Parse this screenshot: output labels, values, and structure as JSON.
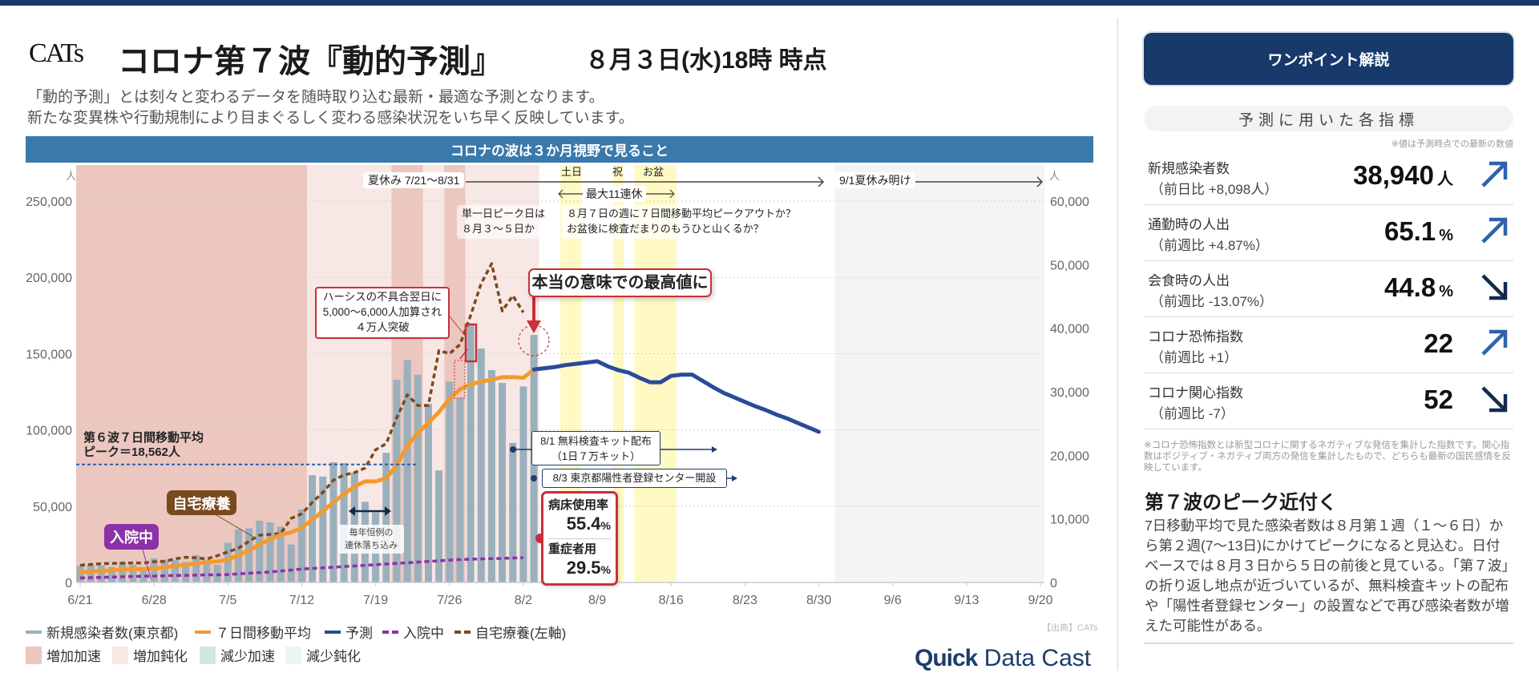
{
  "header": {
    "logo": "CATs",
    "title": "コロナ第７波『動的予測』",
    "date": "８月３日(水)18時 時点",
    "subtitle_1": "「動的予測」とは刻々と変わるデータを随時取り込む最新・最適な予測となります。",
    "subtitle_2": "新たな変異株や行動規制により目まぐるしく変わる感染状況をいち早く反映しています。"
  },
  "banner": "コロナの波は３か月視野で見ること",
  "chart_data": {
    "type": "bar+line",
    "title": "コロナの波は３か月視野で見ること",
    "x_unit": "days from 6/21",
    "x_range": [
      0,
      91
    ],
    "x_ticks": [
      {
        "day": 0,
        "label": "6/21"
      },
      {
        "day": 7,
        "label": "6/28"
      },
      {
        "day": 14,
        "label": "7/5"
      },
      {
        "day": 21,
        "label": "7/12"
      },
      {
        "day": 28,
        "label": "7/19"
      },
      {
        "day": 35,
        "label": "7/26"
      },
      {
        "day": 42,
        "label": "8/2"
      },
      {
        "day": 49,
        "label": "8/9"
      },
      {
        "day": 56,
        "label": "8/16"
      },
      {
        "day": 63,
        "label": "8/23"
      },
      {
        "day": 70,
        "label": "8/30"
      },
      {
        "day": 77,
        "label": "9/6"
      },
      {
        "day": 84,
        "label": "9/13"
      },
      {
        "day": 91,
        "label": "9/20"
      }
    ],
    "left_axis": {
      "unit": "人",
      "range": [
        0,
        250000
      ],
      "ticks": [
        "0",
        "50,000",
        "100,000",
        "150,000",
        "200,000",
        "250,000"
      ]
    },
    "right_axis": {
      "unit": "人",
      "range": [
        0,
        60000
      ],
      "ticks": [
        "0",
        "10,000",
        "20,000",
        "30,000",
        "40,000",
        "50,000",
        "60,000"
      ]
    },
    "series": [
      {
        "name": "新規感染者数(東京都)",
        "type": "bar",
        "axis": "right",
        "color": "#9ab0bd",
        "start_day": 0,
        "values": [
          2662,
          2796,
          2670,
          2449,
          3262,
          2770,
          1963,
          3803,
          3591,
          3511,
          3223,
          4288,
          3571,
          2772,
          6231,
          8341,
          8529,
          9716,
          9456,
          8777,
          5974,
          11511,
          16878,
          16662,
          18919,
          18771,
          17315,
          12685,
          11018,
          20401,
          31878,
          34995,
          32698,
          28112,
          17630,
          31593,
          29036,
          40406,
          36814,
          33400,
          31400,
          21958,
          30842,
          38940
        ]
      },
      {
        "name": "７日間移動平均",
        "type": "line",
        "axis": "right",
        "color": "#f39a2e",
        "start_day": 0,
        "values": [
          1600,
          1700,
          1800,
          1900,
          2000,
          2100,
          2100,
          2200,
          2400,
          2600,
          2800,
          3000,
          3200,
          3300,
          3600,
          4300,
          5000,
          6000,
          6800,
          7500,
          7900,
          8600,
          9900,
          11200,
          12600,
          13900,
          15100,
          15900,
          15900,
          16400,
          18400,
          21500,
          23500,
          25100,
          26800,
          28900,
          30400,
          31200,
          31600,
          31900,
          32300,
          32300,
          32200,
          33500
        ]
      },
      {
        "name": "予測",
        "type": "line",
        "axis": "right",
        "color": "#2a4a9a",
        "start_day": 43,
        "values": [
          33500,
          33700,
          33900,
          34200,
          34400,
          34600,
          34800,
          34000,
          33400,
          33000,
          32200,
          31500,
          31500,
          32500,
          32700,
          32700,
          31700,
          30700,
          29800,
          29100,
          28400,
          27700,
          27100,
          26400,
          25800,
          25100,
          24400,
          23700
        ]
      },
      {
        "name": "入院中",
        "type": "dotted-line",
        "axis": "right",
        "color": "#8b32a8",
        "start_day": 0,
        "values": [
          700,
          750,
          800,
          850,
          900,
          950,
          1000,
          1000,
          1050,
          1100,
          1100,
          1150,
          1200,
          1200,
          1250,
          1350,
          1450,
          1550,
          1650,
          1800,
          1950,
          2100,
          2200,
          2300,
          2400,
          2500,
          2600,
          2700,
          2800,
          2900,
          3000,
          3100,
          3200,
          3300,
          3400,
          3500,
          3600,
          3650,
          3700,
          3750,
          3800,
          3850,
          3900
        ]
      },
      {
        "name": "自宅療養(左軸)",
        "type": "dotted-line",
        "axis": "left",
        "color": "#7a4a1f",
        "start_day": 0,
        "values": [
          11300,
          11800,
          12300,
          12500,
          12600,
          12800,
          12700,
          13600,
          13800,
          15500,
          16500,
          16200,
          15400,
          17500,
          20000,
          22500,
          27000,
          31000,
          31500,
          32000,
          42000,
          45000,
          52500,
          59000,
          67000,
          70500,
          72000,
          75000,
          87000,
          91000,
          108000,
          123000,
          116000,
          116000,
          152000,
          150000,
          156000,
          175000,
          196000,
          209000,
          178000,
          188000,
          177000
        ]
      }
    ],
    "phases": [
      {
        "name": "増加加速",
        "from": -0.4,
        "to": 21.5
      },
      {
        "name": "増加鈍化",
        "from": 21.5,
        "to": 29.5
      },
      {
        "name": "増加加速",
        "from": 29.5,
        "to": 32.5
      },
      {
        "name": "増加鈍化",
        "from": 32.5,
        "to": 34.5
      },
      {
        "name": "増加加速",
        "from": 34.5,
        "to": 36.5
      },
      {
        "name": "増加鈍化",
        "from": 36.5,
        "to": 43.5
      }
    ],
    "holidays": [
      {
        "label": "土日",
        "from": 45.5,
        "to": 47.5
      },
      {
        "label": "祝",
        "from": 50.5,
        "to": 51.5
      },
      {
        "label": "お盆",
        "from": 52.5,
        "to": 56.5
      }
    ],
    "after_vacation_from": 71.5,
    "sixth_wave_peak": 18562,
    "phase_colors": {
      "増加加速": "#ebc7bf",
      "増加鈍化": "#f8e8e5",
      "減少加速": "#cfe7de",
      "減少鈍化": "#ebf5f1"
    },
    "legend": {
      "row1": [
        "新規感染者数(東京都)",
        "７日間移動平均",
        "予測",
        "入院中",
        "自宅療養(左軸)"
      ],
      "row2": [
        "増加加速",
        "増加鈍化",
        "減少加速",
        "減少鈍化"
      ]
    }
  },
  "annotations": {
    "summer_vacation": "夏休み 7/21〜8/31",
    "vacation_end": "9/1夏休み明け",
    "holiday_labels": [
      "土日",
      "祝",
      "お盆"
    ],
    "long_holiday": "最大11連休",
    "peak_question_1": "８月７日の週に７日間移動平均ピークアウトか？",
    "peak_question_2": "お盆後に検査だまりのもうひと山くるか？",
    "single_peak_1": "単一日ピーク日は",
    "single_peak_2": "８月３〜５日か",
    "hersys_1": "ハーシスの不具合翌日に",
    "hersys_2": "5,000〜6,000人加算され",
    "hersys_3": "４万人突破",
    "true_max": "本当の意味での最高値に",
    "kit_1": "8/1 無料検査キット配布",
    "kit_2": "（1日７万キット）",
    "center": "8/3 東京都陽性者登録センター開設",
    "bed_label": "病床使用率",
    "bed_value": "55.4",
    "severe_label": "重症者用",
    "severe_value": "29.5",
    "percent": "%",
    "sixth_1": "第６波７日間移動平均",
    "sixth_2": "ピーク＝18,562人",
    "home_tag": "自宅療養",
    "hosp_tag": "入院中",
    "dip_1": "毎年恒例の",
    "dip_2": "連休落ち込み",
    "unit": "人",
    "source": "【出典】CATs",
    "brand_1": "Quick",
    "brand_2": "Data Cast"
  },
  "sidebar": {
    "button": "ワンポイント解説",
    "indicators_title": "予測に用いた各指標",
    "note": "※値は予測時点での最新の数値",
    "indicators": [
      {
        "name": "新規感染者数",
        "change": "（前日比 +8,098人）",
        "value": "38,940",
        "unit": "人",
        "trend": "up"
      },
      {
        "name": "通勤時の人出",
        "change": "（前週比 +4.87%）",
        "value": "65.1",
        "unit": "%",
        "trend": "up"
      },
      {
        "name": "会食時の人出",
        "change": "（前週比 -13.07%）",
        "value": "44.8",
        "unit": "%",
        "trend": "down"
      },
      {
        "name": "コロナ恐怖指数",
        "change": "（前週比 +1）",
        "value": "22",
        "unit": "",
        "trend": "up"
      },
      {
        "name": "コロナ関心指数",
        "change": "（前週比 -7）",
        "value": "52",
        "unit": "",
        "trend": "down"
      }
    ],
    "footnote": "※コロナ恐怖指数とは新型コロナに関するネガティブな発信を集計した指数です。関心指数はポジティブ・ネガティブ両方の発信を集計したもので、どちらも最新の国民感情を反映しています。",
    "heading": "第７波のピーク近付く",
    "body": "7日移動平均で見た感染者数は８月第１週（１〜６日）から第２週(7〜13日)にかけてピークになると見込む。日付ベースでは８月３日から５日の前後と見ている。「第７波」の折り返し地点が近づいているが、無料検査キットの配布や「陽性者登録センター」の設置などで再び感染者数が増えた可能性がある。",
    "colors": {
      "up": "#2e62ad",
      "down": "#132a4c"
    }
  }
}
